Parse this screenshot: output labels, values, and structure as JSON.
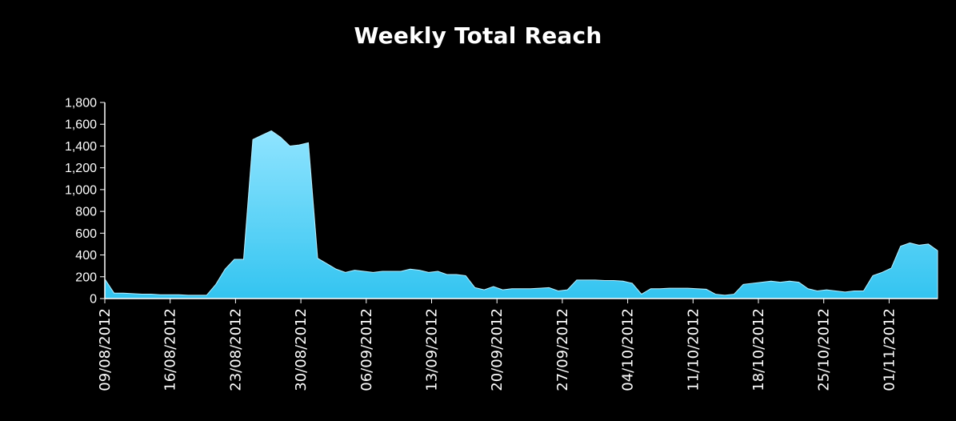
{
  "chart_data": {
    "type": "area",
    "title": "Weekly Total Reach",
    "xlabel": "",
    "ylabel": "",
    "ylim": [
      0,
      1800
    ],
    "yticks": [
      "0",
      "200",
      "400",
      "600",
      "800",
      "1,000",
      "1,200",
      "1,400",
      "1,600",
      "1,800"
    ],
    "xticks": [
      "09/08/2012",
      "16/08/2012",
      "23/08/2012",
      "30/08/2012",
      "06/09/2012",
      "13/09/2012",
      "20/09/2012",
      "27/09/2012",
      "04/10/2012",
      "11/10/2012",
      "18/10/2012",
      "25/10/2012",
      "01/11/2012"
    ],
    "grid": false,
    "legend": "none",
    "colors": {
      "fill": "#33c4f0",
      "fill_light": "#8fe4ff",
      "background": "#000000",
      "text": "#ffffff"
    },
    "series": [
      {
        "values": [
          180,
          50,
          50,
          45,
          40,
          40,
          35,
          35,
          35,
          30,
          30,
          30,
          130,
          270,
          360,
          360,
          1460,
          1500,
          1540,
          1480,
          1400,
          1410,
          1430,
          370,
          320,
          270,
          240,
          260,
          250,
          240,
          250,
          250,
          250,
          270,
          260,
          240,
          250,
          220,
          220,
          210,
          100,
          80,
          110,
          80,
          90,
          90,
          90,
          95,
          100,
          70,
          80,
          170,
          170,
          170,
          165,
          165,
          160,
          140,
          40,
          90,
          90,
          95,
          95,
          95,
          90,
          85,
          40,
          30,
          40,
          130,
          140,
          150,
          160,
          150,
          160,
          150,
          90,
          70,
          80,
          70,
          60,
          70,
          70,
          210,
          240,
          280,
          480,
          510,
          490,
          500,
          440
        ]
      }
    ]
  }
}
